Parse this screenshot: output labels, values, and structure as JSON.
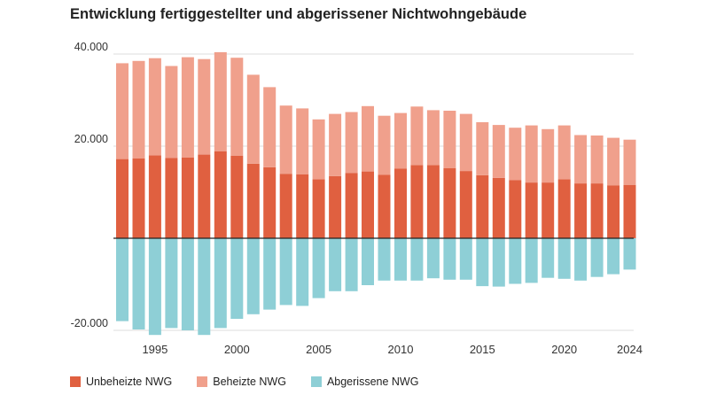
{
  "title": "Entwicklung fertiggestellter und abgerissener Nichtwohngebäude",
  "chart_data": {
    "type": "bar",
    "stacked": true,
    "title": "Entwicklung fertiggestellter und abgerissener Nichtwohngebäude",
    "x": [
      1993,
      1994,
      1995,
      1996,
      1997,
      1998,
      1999,
      2000,
      2001,
      2002,
      2003,
      2004,
      2005,
      2006,
      2007,
      2008,
      2009,
      2010,
      2011,
      2012,
      2013,
      2014,
      2015,
      2016,
      2017,
      2018,
      2019,
      2020,
      2021,
      2022,
      2023,
      2024
    ],
    "x_ticks": [
      "1995",
      "2000",
      "2005",
      "2010",
      "2015",
      "2020",
      "2024"
    ],
    "y_ticks": [
      "40.000",
      "20.000",
      "-20.000"
    ],
    "ylim": [
      -21500,
      41500
    ],
    "grid": true,
    "legend_position": "bottom",
    "series": [
      {
        "name": "Unbeheizte NWG",
        "color": "#e06040",
        "values": [
          17200,
          17300,
          18000,
          17400,
          17500,
          18200,
          18900,
          17900,
          16200,
          15400,
          14000,
          13900,
          12800,
          13500,
          14200,
          14500,
          13800,
          15100,
          15900,
          15900,
          15200,
          14600,
          13700,
          13100,
          12600,
          12100,
          12100,
          12800,
          11900,
          11900,
          11500,
          11600
        ]
      },
      {
        "name": "Beheizte NWG",
        "color": "#f0a08c",
        "values": [
          20800,
          21200,
          21100,
          20000,
          21800,
          20700,
          21500,
          21300,
          19300,
          17400,
          14800,
          14300,
          13000,
          13500,
          13200,
          14200,
          12800,
          12100,
          12700,
          11900,
          12500,
          12400,
          11500,
          11500,
          11400,
          12400,
          11600,
          11700,
          10500,
          10400,
          10300,
          9800
        ]
      },
      {
        "name": "Abgerissene NWG",
        "color": "#8ecfd6",
        "values": [
          -18000,
          -19800,
          -21000,
          -19500,
          -20000,
          -21000,
          -19500,
          -17500,
          -16500,
          -15500,
          -14500,
          -14700,
          -13000,
          -11500,
          -11500,
          -10200,
          -9200,
          -9200,
          -9200,
          -8700,
          -9000,
          -9000,
          -10400,
          -10500,
          -9900,
          -9700,
          -8600,
          -8800,
          -9200,
          -8400,
          -7800,
          -6800
        ]
      }
    ]
  }
}
